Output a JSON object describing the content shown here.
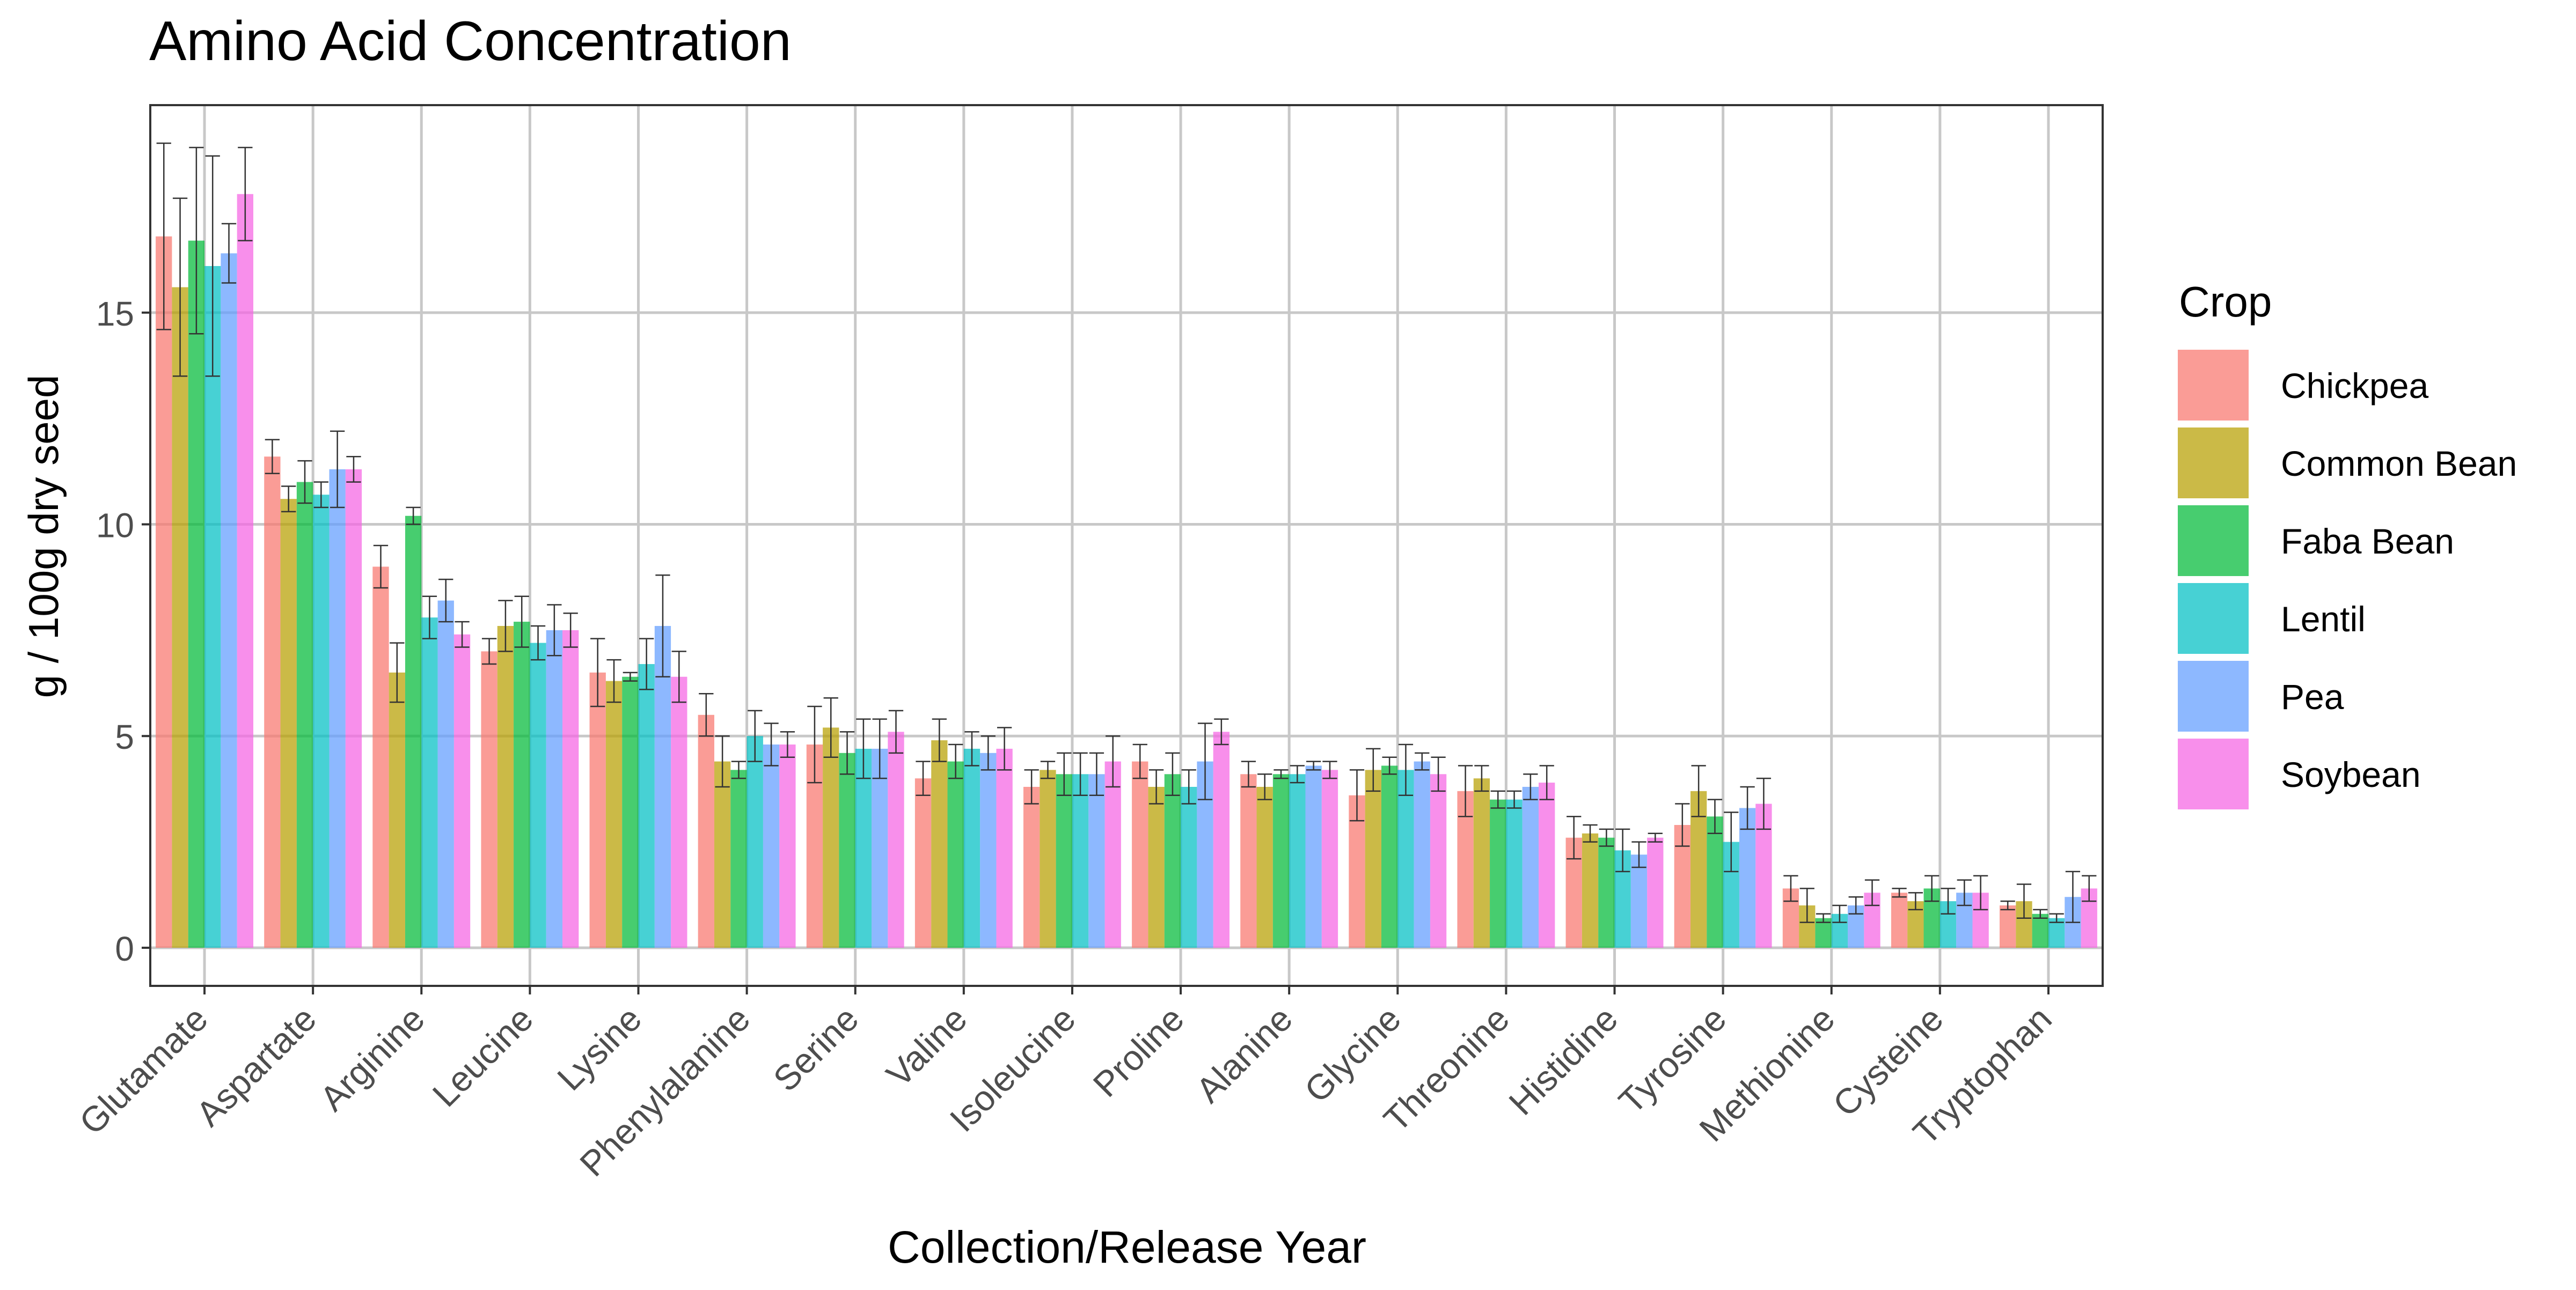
{
  "chart_data": {
    "type": "bar",
    "title": "Amino Acid Concentration",
    "xlabel": "Collection/Release Year",
    "ylabel": "g / 100g dry seed",
    "ylim": [
      -0.9,
      19.9
    ],
    "yticks": [
      0,
      5,
      10,
      15
    ],
    "grid": true,
    "legend": {
      "title": "Crop",
      "position": "right"
    },
    "categories": [
      "Glutamate",
      "Aspartate",
      "Arginine",
      "Leucine",
      "Lysine",
      "Phenylalanine",
      "Serine",
      "Valine",
      "Isoleucine",
      "Proline",
      "Alanine",
      "Glycine",
      "Threonine",
      "Histidine",
      "Tyrosine",
      "Methionine",
      "Cysteine",
      "Tryptophan"
    ],
    "series": [
      {
        "name": "Chickpea",
        "color": "#F8766D",
        "values": [
          16.8,
          11.6,
          9.0,
          7.0,
          6.5,
          5.5,
          4.8,
          4.0,
          3.8,
          4.4,
          4.1,
          3.6,
          3.7,
          2.6,
          2.9,
          1.4,
          1.3,
          1.0
        ],
        "errors": [
          2.2,
          0.4,
          0.5,
          0.3,
          0.8,
          0.5,
          0.9,
          0.4,
          0.4,
          0.4,
          0.3,
          0.6,
          0.6,
          0.5,
          0.5,
          0.3,
          0.1,
          0.1
        ]
      },
      {
        "name": "Common Bean",
        "color": "#B79F00",
        "values": [
          15.6,
          10.6,
          6.5,
          7.6,
          6.3,
          4.4,
          5.2,
          4.9,
          4.2,
          3.8,
          3.8,
          4.2,
          4.0,
          2.7,
          3.7,
          1.0,
          1.1,
          1.1
        ],
        "errors": [
          2.1,
          0.3,
          0.7,
          0.6,
          0.5,
          0.6,
          0.7,
          0.5,
          0.2,
          0.4,
          0.3,
          0.5,
          0.3,
          0.2,
          0.6,
          0.4,
          0.2,
          0.4
        ]
      },
      {
        "name": "Faba Bean",
        "color": "#00BA38",
        "values": [
          16.7,
          11.0,
          10.2,
          7.7,
          6.4,
          4.2,
          4.6,
          4.4,
          4.1,
          4.1,
          4.1,
          4.3,
          3.5,
          2.6,
          3.1,
          0.7,
          1.4,
          0.8
        ],
        "errors": [
          2.2,
          0.5,
          0.2,
          0.6,
          0.1,
          0.2,
          0.5,
          0.4,
          0.5,
          0.5,
          0.1,
          0.2,
          0.2,
          0.2,
          0.4,
          0.1,
          0.3,
          0.1
        ]
      },
      {
        "name": "Lentil",
        "color": "#00BFC4",
        "values": [
          16.1,
          10.7,
          7.8,
          7.2,
          6.7,
          5.0,
          4.7,
          4.7,
          4.1,
          3.8,
          4.1,
          4.2,
          3.5,
          2.3,
          2.5,
          0.8,
          1.1,
          0.7
        ],
        "errors": [
          2.6,
          0.3,
          0.5,
          0.4,
          0.6,
          0.6,
          0.7,
          0.4,
          0.5,
          0.4,
          0.2,
          0.6,
          0.2,
          0.5,
          0.7,
          0.2,
          0.3,
          0.1
        ]
      },
      {
        "name": "Pea",
        "color": "#619CFF",
        "values": [
          16.4,
          11.3,
          8.2,
          7.5,
          7.6,
          4.8,
          4.7,
          4.6,
          4.1,
          4.4,
          4.3,
          4.4,
          3.8,
          2.2,
          3.3,
          1.0,
          1.3,
          1.2
        ],
        "errors": [
          0.7,
          0.9,
          0.5,
          0.6,
          1.2,
          0.5,
          0.7,
          0.4,
          0.5,
          0.9,
          0.1,
          0.2,
          0.3,
          0.3,
          0.5,
          0.2,
          0.3,
          0.6
        ]
      },
      {
        "name": "Soybean",
        "color": "#F564E3",
        "values": [
          17.8,
          11.3,
          7.4,
          7.5,
          6.4,
          4.8,
          5.1,
          4.7,
          4.4,
          5.1,
          4.2,
          4.1,
          3.9,
          2.6,
          3.4,
          1.3,
          1.3,
          1.4
        ],
        "errors": [
          1.1,
          0.3,
          0.3,
          0.4,
          0.6,
          0.3,
          0.5,
          0.5,
          0.6,
          0.3,
          0.2,
          0.4,
          0.4,
          0.1,
          0.6,
          0.3,
          0.4,
          0.3
        ]
      }
    ]
  }
}
